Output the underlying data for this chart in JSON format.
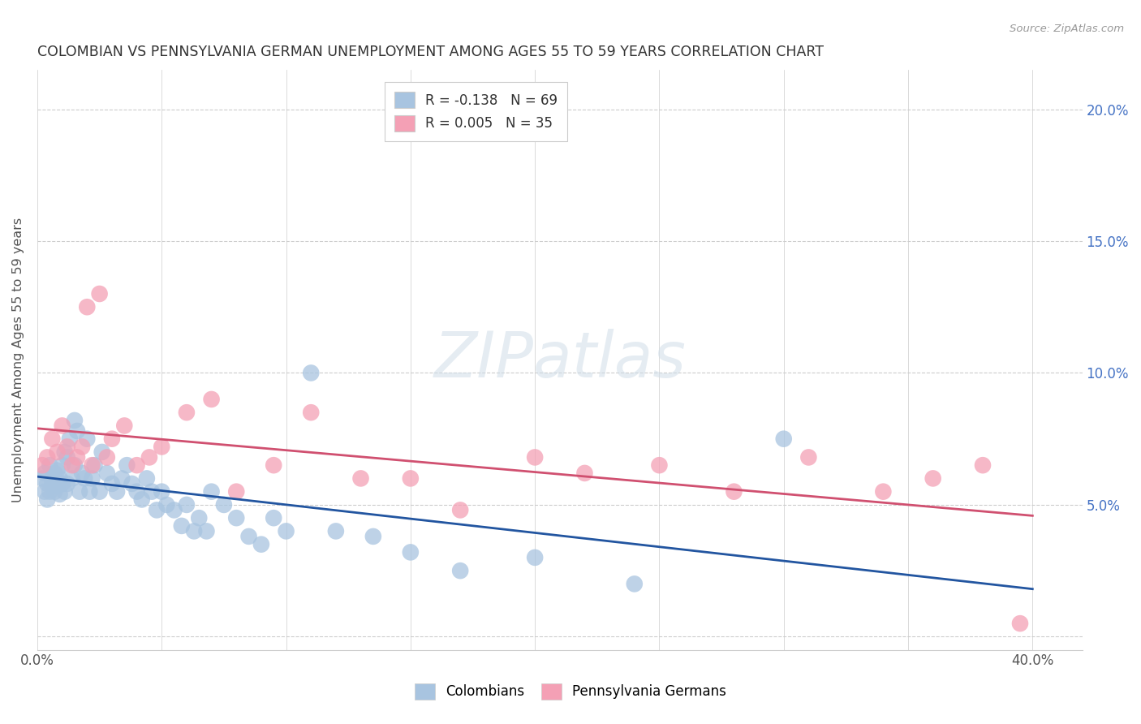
{
  "title": "COLOMBIAN VS PENNSYLVANIA GERMAN UNEMPLOYMENT AMONG AGES 55 TO 59 YEARS CORRELATION CHART",
  "source": "Source: ZipAtlas.com",
  "ylabel": "Unemployment Among Ages 55 to 59 years",
  "xlim": [
    0.0,
    0.42
  ],
  "ylim": [
    -0.005,
    0.215
  ],
  "ytick_vals": [
    0.0,
    0.05,
    0.1,
    0.15,
    0.2
  ],
  "ytick_labels_right": [
    "",
    "5.0%",
    "10.0%",
    "15.0%",
    "20.0%"
  ],
  "xtick_vals": [
    0.0,
    0.05,
    0.1,
    0.15,
    0.2,
    0.25,
    0.3,
    0.35,
    0.4
  ],
  "xtick_labels": [
    "0.0%",
    "",
    "",
    "",
    "",
    "",
    "",
    "",
    "40.0%"
  ],
  "colombians_R": -0.138,
  "colombians_N": 69,
  "penn_german_R": 0.005,
  "penn_german_N": 35,
  "colombian_color": "#a8c4e0",
  "penn_german_color": "#f4a0b5",
  "colombian_line_color": "#2255a0",
  "penn_german_line_color": "#d05070",
  "watermark": "ZIPatlas",
  "colombians_x": [
    0.002,
    0.003,
    0.003,
    0.004,
    0.004,
    0.005,
    0.005,
    0.006,
    0.006,
    0.007,
    0.007,
    0.008,
    0.008,
    0.009,
    0.009,
    0.01,
    0.01,
    0.011,
    0.011,
    0.012,
    0.012,
    0.013,
    0.014,
    0.015,
    0.015,
    0.016,
    0.017,
    0.018,
    0.019,
    0.02,
    0.021,
    0.022,
    0.023,
    0.025,
    0.026,
    0.028,
    0.03,
    0.032,
    0.034,
    0.036,
    0.038,
    0.04,
    0.042,
    0.044,
    0.046,
    0.048,
    0.05,
    0.052,
    0.055,
    0.058,
    0.06,
    0.063,
    0.065,
    0.068,
    0.07,
    0.075,
    0.08,
    0.085,
    0.09,
    0.095,
    0.1,
    0.11,
    0.12,
    0.135,
    0.15,
    0.17,
    0.2,
    0.24,
    0.3
  ],
  "colombians_y": [
    0.06,
    0.062,
    0.055,
    0.058,
    0.052,
    0.065,
    0.055,
    0.06,
    0.058,
    0.062,
    0.055,
    0.063,
    0.057,
    0.06,
    0.054,
    0.065,
    0.058,
    0.07,
    0.055,
    0.068,
    0.058,
    0.075,
    0.06,
    0.082,
    0.065,
    0.078,
    0.055,
    0.062,
    0.06,
    0.075,
    0.055,
    0.06,
    0.065,
    0.055,
    0.07,
    0.062,
    0.058,
    0.055,
    0.06,
    0.065,
    0.058,
    0.055,
    0.052,
    0.06,
    0.055,
    0.048,
    0.055,
    0.05,
    0.048,
    0.042,
    0.05,
    0.04,
    0.045,
    0.04,
    0.055,
    0.05,
    0.045,
    0.038,
    0.035,
    0.045,
    0.04,
    0.1,
    0.04,
    0.038,
    0.032,
    0.025,
    0.03,
    0.02,
    0.075
  ],
  "penn_german_x": [
    0.002,
    0.004,
    0.006,
    0.008,
    0.01,
    0.012,
    0.014,
    0.016,
    0.018,
    0.02,
    0.022,
    0.025,
    0.028,
    0.03,
    0.035,
    0.04,
    0.045,
    0.05,
    0.06,
    0.07,
    0.08,
    0.095,
    0.11,
    0.13,
    0.15,
    0.17,
    0.2,
    0.22,
    0.25,
    0.28,
    0.31,
    0.34,
    0.36,
    0.38,
    0.395
  ],
  "penn_german_y": [
    0.065,
    0.068,
    0.075,
    0.07,
    0.08,
    0.072,
    0.065,
    0.068,
    0.072,
    0.125,
    0.065,
    0.13,
    0.068,
    0.075,
    0.08,
    0.065,
    0.068,
    0.072,
    0.085,
    0.09,
    0.055,
    0.065,
    0.085,
    0.06,
    0.06,
    0.048,
    0.068,
    0.062,
    0.065,
    0.055,
    0.068,
    0.055,
    0.06,
    0.065,
    0.005
  ]
}
